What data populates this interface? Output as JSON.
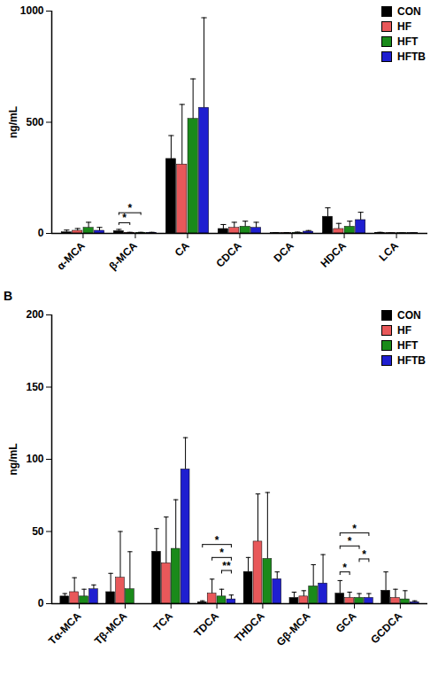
{
  "chart_data": [
    {
      "type": "bar",
      "y_label": "ng/mL",
      "categories": [
        "α-MCA",
        "β-MCA",
        "CA",
        "CDCA",
        "DCA",
        "HDCA",
        "LCA"
      ],
      "series": [
        {
          "name": "CON",
          "color": "#000000",
          "values": [
            5,
            10,
            335,
            20,
            2,
            75,
            3
          ],
          "errors": [
            10,
            8,
            105,
            20,
            2,
            40,
            2
          ]
        },
        {
          "name": "HF",
          "color": "#e8585a",
          "values": [
            12,
            3,
            310,
            25,
            2,
            20,
            1
          ],
          "errors": [
            10,
            2,
            270,
            25,
            2,
            25,
            1
          ]
        },
        {
          "name": "HFT",
          "color": "#1a8a1a",
          "values": [
            25,
            3,
            515,
            30,
            3,
            30,
            1
          ],
          "errors": [
            25,
            2,
            180,
            25,
            3,
            25,
            1
          ]
        },
        {
          "name": "HFTB",
          "color": "#1f1fd0",
          "values": [
            12,
            3,
            565,
            25,
            8,
            60,
            1
          ],
          "errors": [
            15,
            2,
            405,
            25,
            5,
            35,
            1
          ]
        }
      ],
      "significance": [
        {
          "category": "β-MCA",
          "from": "CON",
          "to": "HF",
          "label": "*"
        },
        {
          "category": "β-MCA",
          "from": "CON",
          "to": "HFT",
          "label": "*"
        }
      ],
      "ylim": [
        0,
        1000
      ],
      "yticks": [
        0,
        500,
        1000
      ],
      "legend": "top-right"
    },
    {
      "type": "bar",
      "panel_label": "B",
      "y_label": "ng/mL",
      "categories": [
        "Tα-MCA",
        "Tβ-MCA",
        "TCA",
        "TDCA",
        "THDCA",
        "Gβ-MCA",
        "GCA",
        "GCDCA"
      ],
      "series": [
        {
          "name": "CON",
          "color": "#000000",
          "values": [
            5,
            8,
            36,
            1,
            22,
            4,
            7,
            9
          ],
          "errors": [
            2,
            13,
            16,
            1,
            10,
            4,
            9,
            13
          ]
        },
        {
          "name": "HF",
          "color": "#e8585a",
          "values": [
            8,
            18,
            28,
            7,
            43,
            5,
            4,
            4
          ],
          "errors": [
            10,
            32,
            32,
            10,
            33,
            4,
            4,
            6
          ]
        },
        {
          "name": "HFT",
          "color": "#1a8a1a",
          "values": [
            5,
            10,
            38,
            5,
            31,
            12,
            4,
            3
          ],
          "errors": [
            5,
            26,
            34,
            5,
            46,
            15,
            3,
            6
          ]
        },
        {
          "name": "HFTB",
          "color": "#1f1fd0",
          "values": [
            10,
            0,
            93,
            3,
            17,
            14,
            4,
            1
          ],
          "errors": [
            3,
            0,
            22,
            3,
            5,
            20,
            3,
            1
          ]
        }
      ],
      "significance": [
        {
          "category": "TDCA",
          "from": "HFT",
          "to": "HFTB",
          "label": "**"
        },
        {
          "category": "TDCA",
          "from": "HF",
          "to": "HFTB",
          "label": "*"
        },
        {
          "category": "TDCA",
          "from": "CON",
          "to": "HFTB",
          "label": "*"
        },
        {
          "category": "GCA",
          "from": "CON",
          "to": "HF",
          "label": "*"
        },
        {
          "category": "GCA",
          "from": "HFT",
          "to": "HFTB",
          "label": "*"
        },
        {
          "category": "GCA",
          "from": "CON",
          "to": "HFT",
          "label": "*"
        },
        {
          "category": "GCA",
          "from": "CON",
          "to": "HFTB",
          "label": "*"
        }
      ],
      "ylim": [
        0,
        200
      ],
      "yticks": [
        0,
        50,
        100,
        150,
        200
      ],
      "legend": "top-right"
    }
  ]
}
